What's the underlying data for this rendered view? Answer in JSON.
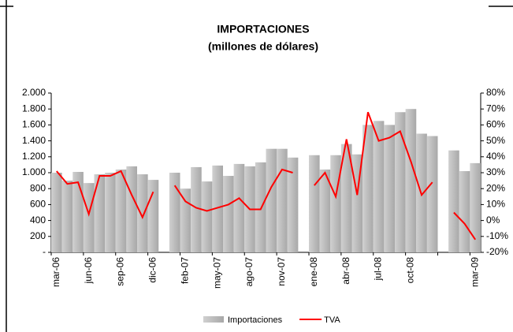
{
  "chart_data": {
    "type": "bar",
    "title": "IMPORTACIONES",
    "subtitle": "(millones de dólares)",
    "categories": [
      "mar-06",
      null,
      null,
      "jun-06",
      null,
      null,
      "sep-06",
      null,
      null,
      "dic-06",
      null,
      null,
      "feb-07",
      null,
      null,
      "may-07",
      null,
      null,
      "ago-07",
      null,
      null,
      "nov-07",
      null,
      null,
      "ene-08",
      null,
      null,
      "abr-08",
      null,
      null,
      "jul-08",
      null,
      null,
      "oct-08",
      null,
      null,
      null,
      null,
      null,
      "mar-09"
    ],
    "series": [
      {
        "name": "Importaciones",
        "type": "bar",
        "color": "#b4b4b4",
        "values": [
          1000,
          900,
          1010,
          870,
          980,
          1000,
          1040,
          1080,
          980,
          910,
          null,
          1000,
          800,
          1070,
          890,
          1090,
          960,
          1110,
          1080,
          1130,
          1300,
          1300,
          1190,
          null,
          1220,
          1040,
          1220,
          1360,
          1230,
          1600,
          1650,
          1600,
          1760,
          1800,
          1490,
          1460,
          null,
          1280,
          1020,
          1120
        ]
      },
      {
        "name": "TVA",
        "type": "line",
        "color": "#ff0000",
        "axis": "y2",
        "values": [
          31,
          23,
          24,
          4,
          28,
          28,
          31,
          16,
          2,
          18,
          null,
          22,
          12,
          8,
          6,
          8,
          10,
          14,
          7,
          7,
          21,
          32,
          30,
          null,
          22,
          30,
          15,
          51,
          16,
          68,
          50,
          52,
          56,
          37,
          16,
          24,
          null,
          5,
          -2,
          -12
        ]
      }
    ],
    "ylim": [
      0,
      2000
    ],
    "yticks": [
      {
        "value": 0,
        "label": "-"
      },
      200,
      400,
      600,
      800,
      {
        "value": 1000,
        "label": "1.000"
      },
      {
        "value": 1200,
        "label": "1.200"
      },
      {
        "value": 1400,
        "label": "1.400"
      },
      {
        "value": 1600,
        "label": "1.600"
      },
      {
        "value": 1800,
        "label": "1.800"
      },
      {
        "value": 2000,
        "label": "2.000"
      }
    ],
    "y2lim": [
      -20,
      80
    ],
    "y2ticks": [
      {
        "value": -20,
        "label": "-20%"
      },
      {
        "value": -10,
        "label": "-10%"
      },
      {
        "value": 0,
        "label": "0%"
      },
      {
        "value": 10,
        "label": "10%"
      },
      {
        "value": 20,
        "label": "20%"
      },
      {
        "value": 30,
        "label": "30%"
      },
      {
        "value": 40,
        "label": "40%"
      },
      {
        "value": 50,
        "label": "50%"
      },
      {
        "value": 60,
        "label": "60%"
      },
      {
        "value": 70,
        "label": "70%"
      },
      {
        "value": 80,
        "label": "80%"
      }
    ],
    "legend": "bottom"
  }
}
